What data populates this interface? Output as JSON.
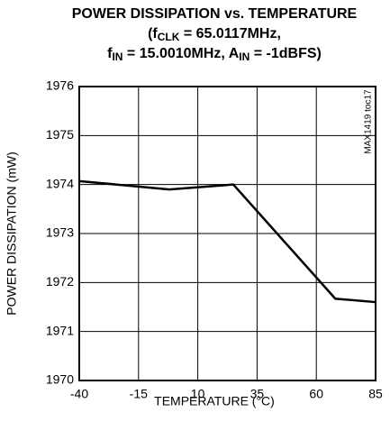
{
  "chart_data": {
    "type": "line",
    "title": [
      "POWER DISSIPATION vs. TEMPERATURE",
      [
        "(f",
        "CLK",
        " = 65.0117MHz,"
      ],
      [
        "f",
        "IN",
        " = 15.0010MHz, A",
        "IN",
        " = -1dBFS)"
      ]
    ],
    "xlabel": "TEMPERATURE (°C)",
    "ylabel": "POWER DISSIPATION (mW)",
    "annotation": "MAX1419 toc17",
    "x": [
      -40,
      -2,
      25,
      68,
      85
    ],
    "series": [
      {
        "color": "#000000",
        "values": [
          1974.07,
          1973.9,
          1974.0,
          1971.67,
          1971.6
        ]
      }
    ],
    "xlim": [
      -40,
      85
    ],
    "xticks": [
      -40,
      -15,
      10,
      35,
      60,
      85
    ],
    "ylim": [
      1970,
      1976
    ],
    "yticks": [
      1970,
      1971,
      1972,
      1973,
      1974,
      1975,
      1976
    ],
    "grid": true
  }
}
